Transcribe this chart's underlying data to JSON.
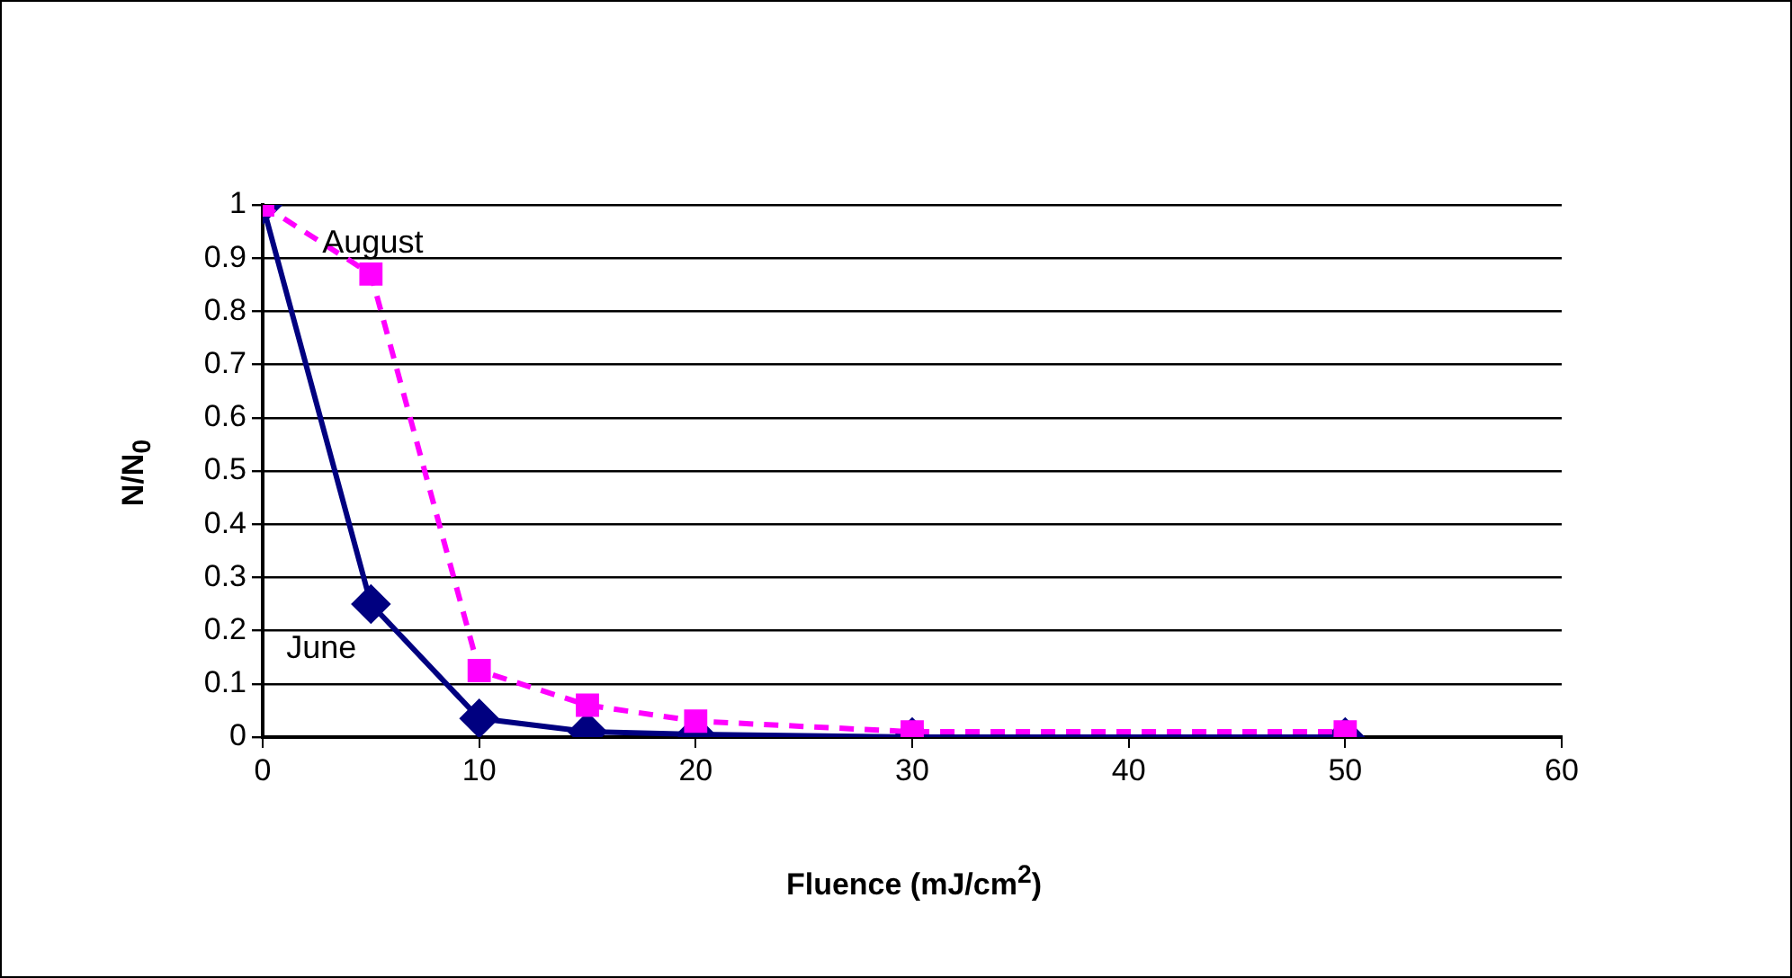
{
  "chart_data": {
    "type": "line",
    "xlabel": "Fluence (mJ/cm$^{2}$)",
    "ylabel": "N/N$_{0}$",
    "x": [
      0,
      5,
      10,
      15,
      20,
      30,
      50
    ],
    "series": [
      {
        "name": "June",
        "color": "#000080",
        "marker": "diamond",
        "line_style": "solid",
        "values": [
          1,
          0.25,
          0.035,
          0.01,
          0.005,
          0,
          0
        ]
      },
      {
        "name": "August",
        "color": "#ff00ff",
        "marker": "square",
        "line_style": "dashed",
        "values": [
          1,
          0.87,
          0.125,
          0.06,
          0.03,
          0.01,
          0.01
        ]
      }
    ],
    "xlim": [
      0,
      60
    ],
    "xticks": [
      0,
      10,
      20,
      30,
      40,
      50,
      60
    ],
    "ylim": [
      0,
      1
    ],
    "yticks": [
      0,
      0.1,
      0.2,
      0.3,
      0.4,
      0.5,
      0.6,
      0.7,
      0.8,
      0.9,
      1
    ],
    "grid": "y",
    "legend": false
  }
}
